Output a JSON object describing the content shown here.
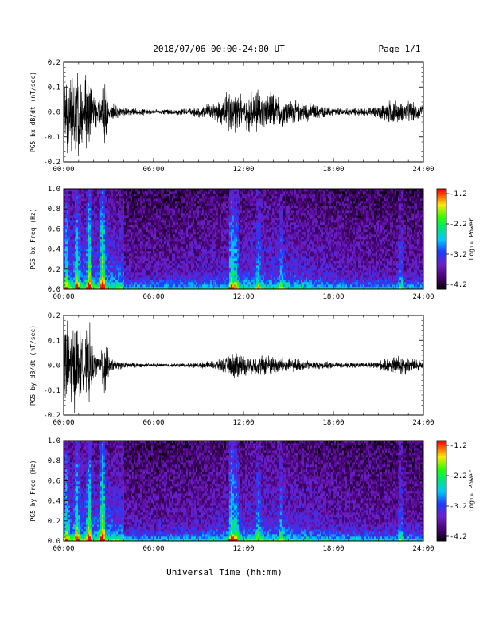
{
  "header": {
    "title": "2018/07/06  00:00-24:00 UT",
    "page": "Page 1/1"
  },
  "xlabel": "Universal Time (hh:mm)",
  "colorbar": {
    "label": "Log₁₀ Power",
    "ticks": [
      "-1.2",
      "-2.2",
      "-3.2",
      "-4.2"
    ],
    "range": [
      -4.2,
      -1.2
    ]
  },
  "chart_data": [
    {
      "type": "line",
      "ylabel": "PG5 bx dB/dt (nT/sec)",
      "xlim": [
        0,
        24
      ],
      "ylim": [
        -0.2,
        0.2
      ],
      "x_tick_labels": [
        "00:00",
        "06:00",
        "12:00",
        "18:00",
        "24:00"
      ],
      "y_tick_labels": [
        "0.2",
        "0.1",
        "0.0",
        "-0.1",
        "-0.2"
      ],
      "envelope": {
        "x_hours": [
          0.0,
          0.5,
          1.0,
          1.3,
          1.7,
          2.0,
          2.5,
          2.75,
          3.0,
          3.5,
          4.0,
          5.0,
          6.0,
          7.0,
          8.0,
          9.0,
          10.0,
          10.5,
          11.0,
          11.5,
          12.0,
          12.5,
          13.0,
          13.5,
          14.0,
          14.5,
          15.0,
          15.5,
          16.0,
          16.5,
          17.0,
          18.0,
          19.0,
          20.0,
          21.0,
          21.5,
          22.0,
          22.5,
          23.0,
          23.5,
          24.0
        ],
        "amp": [
          0.2,
          0.2,
          0.2,
          0.12,
          0.2,
          0.08,
          0.06,
          0.2,
          0.05,
          0.03,
          0.02,
          0.015,
          0.012,
          0.012,
          0.015,
          0.025,
          0.04,
          0.06,
          0.1,
          0.11,
          0.08,
          0.09,
          0.1,
          0.08,
          0.09,
          0.07,
          0.06,
          0.05,
          0.05,
          0.04,
          0.03,
          0.02,
          0.018,
          0.018,
          0.025,
          0.05,
          0.06,
          0.04,
          0.05,
          0.04,
          0.03
        ]
      }
    },
    {
      "type": "heatmap",
      "ylabel": "PG5 bx Freq (Hz)",
      "xlim": [
        0,
        24
      ],
      "ylim": [
        0.0,
        1.0
      ],
      "x_tick_labels": [
        "00:00",
        "06:00",
        "12:00",
        "18:00",
        "24:00"
      ],
      "y_tick_labels": [
        "1.0",
        "0.8",
        "0.6",
        "0.4",
        "0.2",
        "0.0"
      ]
    },
    {
      "type": "line",
      "ylabel": "PG5 by dB/dt (nT/sec)",
      "xlim": [
        0,
        24
      ],
      "ylim": [
        -0.2,
        0.2
      ],
      "x_tick_labels": [
        "00:00",
        "06:00",
        "12:00",
        "18:00",
        "24:00"
      ],
      "y_tick_labels": [
        "0.2",
        "0.1",
        "0.0",
        "-0.1",
        "-0.2"
      ],
      "envelope": {
        "x_hours": [
          0.0,
          0.5,
          1.0,
          1.3,
          1.7,
          2.0,
          2.5,
          2.75,
          3.0,
          3.5,
          4.0,
          5.0,
          6.0,
          7.0,
          8.0,
          9.0,
          10.0,
          10.5,
          11.0,
          11.5,
          12.0,
          12.5,
          13.0,
          13.5,
          14.0,
          14.5,
          15.0,
          15.5,
          16.0,
          16.5,
          17.0,
          18.0,
          19.0,
          20.0,
          21.0,
          21.5,
          22.0,
          22.5,
          23.0,
          23.5,
          24.0
        ],
        "amp": [
          0.2,
          0.2,
          0.2,
          0.1,
          0.2,
          0.06,
          0.05,
          0.2,
          0.04,
          0.02,
          0.015,
          0.01,
          0.008,
          0.008,
          0.01,
          0.012,
          0.02,
          0.03,
          0.04,
          0.07,
          0.05,
          0.04,
          0.045,
          0.05,
          0.045,
          0.04,
          0.035,
          0.03,
          0.025,
          0.02,
          0.018,
          0.015,
          0.012,
          0.012,
          0.02,
          0.03,
          0.04,
          0.05,
          0.04,
          0.03,
          0.025
        ]
      }
    },
    {
      "type": "heatmap",
      "ylabel": "PG5 by Freq (Hz)",
      "xlim": [
        0,
        24
      ],
      "ylim": [
        0.0,
        1.0
      ],
      "x_tick_labels": [
        "00:00",
        "06:00",
        "12:00",
        "18:00",
        "24:00"
      ],
      "y_tick_labels": [
        "1.0",
        "0.8",
        "0.6",
        "0.4",
        "0.2",
        "0.0"
      ]
    }
  ]
}
